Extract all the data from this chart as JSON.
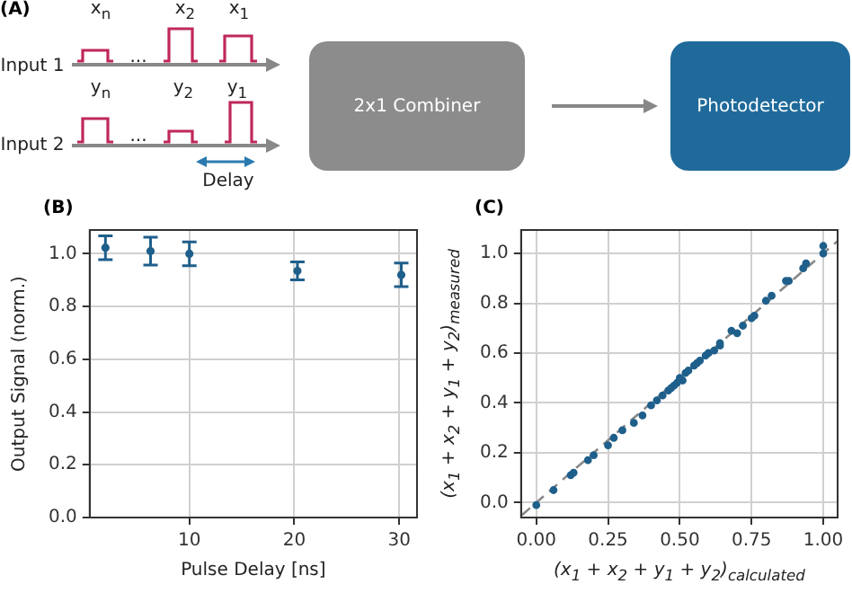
{
  "chart_data": [
    {
      "type": "other",
      "title": "(A)",
      "annotations": [
        "x$_{n}$",
        "x$_{2}$",
        "x$_{1}$",
        "Input 1",
        "y$_{n}$",
        "y$_{2}$",
        "y$_{1}$",
        "Input 2",
        "...",
        "...",
        "Delay",
        "2x1 Combiner",
        "Photodetector"
      ]
    },
    {
      "type": "scatter",
      "title": "(B)",
      "xlabel": "Pulse Delay [ns]",
      "ylabel": "Output Signal (norm.)",
      "x": [
        2,
        6.3,
        10,
        20.3,
        30.2
      ],
      "values": [
        1.023,
        1.01,
        1.0,
        0.935,
        0.92
      ],
      "errors": [
        0.045,
        0.053,
        0.045,
        0.034,
        0.045
      ],
      "color": "#1f5f8b",
      "marker": "circle",
      "xlim": [
        0.5,
        31.7
      ],
      "xticks": [
        10,
        20,
        30
      ],
      "ylim": [
        0,
        1.09
      ],
      "yticks": [
        {
          "value": 0,
          "label": "0.0"
        },
        {
          "value": 0.2,
          "label": "0.2"
        },
        {
          "value": 0.4,
          "label": "0.4"
        },
        {
          "value": 0.6,
          "label": "0.6"
        },
        {
          "value": 0.8,
          "label": "0.8"
        },
        {
          "value": 1,
          "label": "1.0"
        }
      ],
      "grid": true
    },
    {
      "type": "scatter",
      "title": "(C)",
      "xlabel": "(x$_{1}$ + x$_{2}$ + y$_{1}$ + y$_{2}$)$_{calculated}$",
      "ylabel": "(x$_{1}$ + x$_{2}$ + y$_{1}$ + y$_{2}$)$_{measured}$",
      "series": [
        {
          "type": "scatter",
          "color": "#1f5f8b",
          "marker": "circle",
          "x": [
            0,
            0.06,
            0.12,
            0.13,
            0.18,
            0.2,
            0.25,
            0.27,
            0.3,
            0.34,
            0.37,
            0.4,
            0.42,
            0.44,
            0.46,
            0.47,
            0.48,
            0.49,
            0.5,
            0.51,
            0.52,
            0.53,
            0.55,
            0.56,
            0.57,
            0.59,
            0.6,
            0.62,
            0.64,
            0.64,
            0.68,
            0.7,
            0.72,
            0.75,
            0.76,
            0.8,
            0.82,
            0.87,
            0.88,
            0.93,
            0.94,
            1.0,
            1.0
          ],
          "values": [
            -0.01,
            0.05,
            0.11,
            0.12,
            0.17,
            0.19,
            0.23,
            0.26,
            0.29,
            0.32,
            0.35,
            0.39,
            0.41,
            0.43,
            0.45,
            0.46,
            0.47,
            0.48,
            0.5,
            0.49,
            0.52,
            0.53,
            0.55,
            0.56,
            0.57,
            0.59,
            0.6,
            0.61,
            0.63,
            0.64,
            0.69,
            0.68,
            0.71,
            0.74,
            0.75,
            0.81,
            0.83,
            0.89,
            0.89,
            0.94,
            0.96,
            1.0,
            1.03
          ]
        },
        {
          "type": "line",
          "color": "#888888",
          "line_style": "dashed",
          "marker": "none",
          "x": [
            -0.05,
            1.05
          ],
          "values": [
            -0.05,
            1.05
          ]
        }
      ],
      "xlim": [
        -0.053,
        1.05
      ],
      "xticks": [
        {
          "value": 0,
          "label": "0.00"
        },
        {
          "value": 0.25,
          "label": "0.25"
        },
        {
          "value": 0.5,
          "label": "0.50"
        },
        {
          "value": 0.75,
          "label": "0.75"
        },
        {
          "value": 1,
          "label": "1.00"
        }
      ],
      "ylim": [
        -0.06,
        1.094
      ],
      "yticks": [
        {
          "value": 0,
          "label": "0.0"
        },
        {
          "value": 0.2,
          "label": "0.2"
        },
        {
          "value": 0.4,
          "label": "0.4"
        },
        {
          "value": 0.6,
          "label": "0.6"
        },
        {
          "value": 0.8,
          "label": "0.8"
        },
        {
          "value": 1,
          "label": "1.0"
        }
      ],
      "grid": true
    }
  ]
}
